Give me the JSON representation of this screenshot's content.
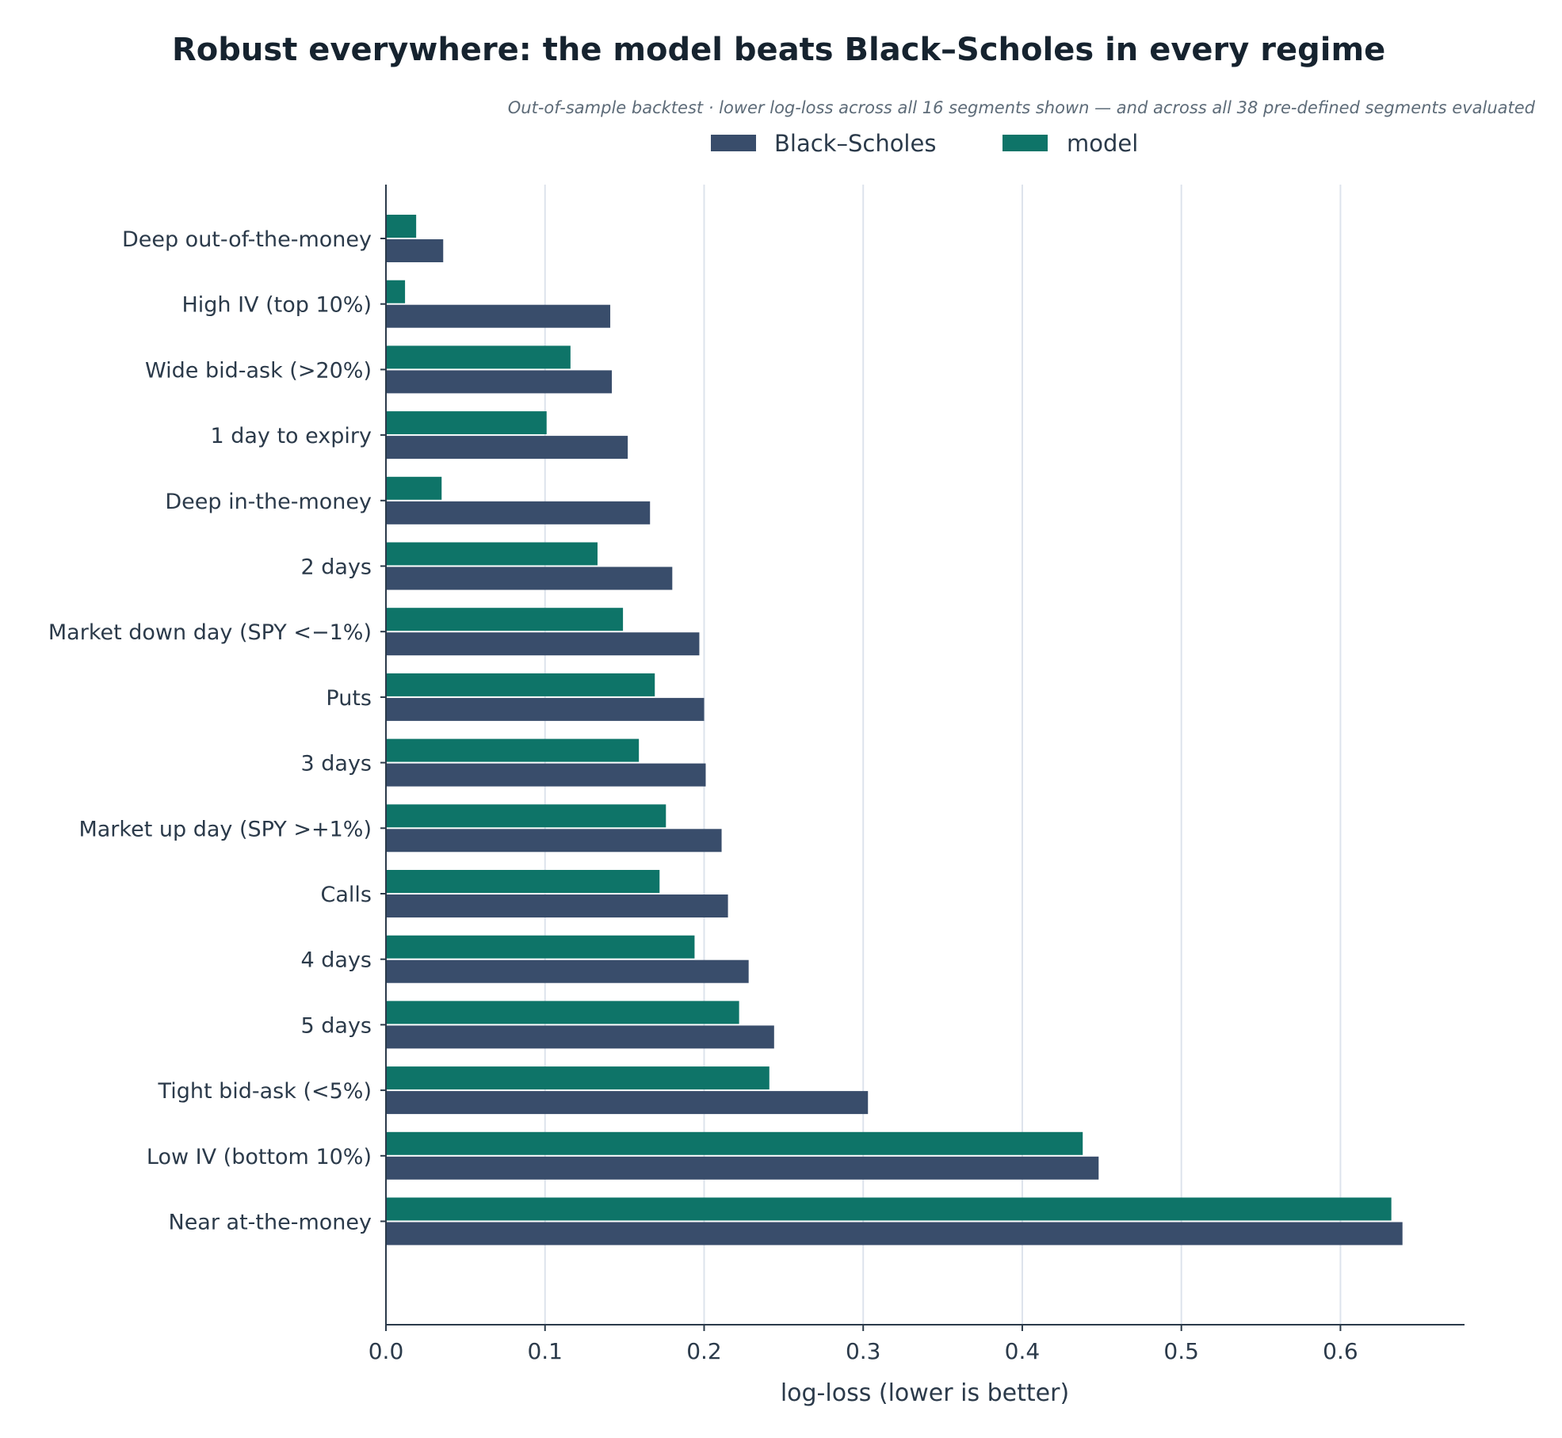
{
  "chart_data": {
    "type": "bar",
    "orientation": "horizontal",
    "title": "Robust everywhere: the model beats Black–Scholes in every regime",
    "subtitle": "Out-of-sample backtest · lower log-loss across all 16 segments shown — and across all 38 pre-defined segments evaluated",
    "xlabel": "log-loss  (lower is better)",
    "ylabel": "",
    "xlim": [
      0,
      0.678
    ],
    "xticks": [
      0.0,
      0.1,
      0.2,
      0.3,
      0.4,
      0.5,
      0.6
    ],
    "xtick_labels": [
      "0.0",
      "0.1",
      "0.2",
      "0.3",
      "0.4",
      "0.5",
      "0.6"
    ],
    "grid": "vertical",
    "legend_position": "top-center",
    "categories": [
      "Deep out-of-the-money",
      "High IV (top 10%)",
      "Wide bid-ask (>20%)",
      "1 day to expiry",
      "Deep in-the-money",
      "2 days",
      "Market down day (SPY <−1%)",
      "Puts",
      "3 days",
      "Market up day (SPY >+1%)",
      "Calls",
      "4 days",
      "5 days",
      "Tight bid-ask (<5%)",
      "Low IV (bottom 10%)",
      "Near at-the-money"
    ],
    "series": [
      {
        "name": "Black–Scholes",
        "color": "#394d6b",
        "values": [
          0.036,
          0.141,
          0.142,
          0.152,
          0.166,
          0.18,
          0.197,
          0.2,
          0.201,
          0.211,
          0.215,
          0.228,
          0.244,
          0.303,
          0.448,
          0.639
        ]
      },
      {
        "name": "model",
        "color": "#0e7468",
        "values": [
          0.019,
          0.012,
          0.116,
          0.101,
          0.035,
          0.133,
          0.149,
          0.169,
          0.159,
          0.176,
          0.172,
          0.194,
          0.222,
          0.241,
          0.438,
          0.632
        ]
      }
    ]
  }
}
